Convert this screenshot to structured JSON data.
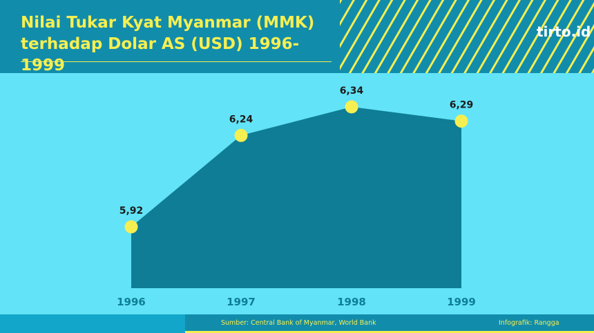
{
  "header": {
    "title_line1": "Nilai Tukar Kyat Myanmar (MMK)",
    "title_line2": "terhadap Dolar AS (USD) 1996-1999",
    "logo_text": "tirto.id"
  },
  "footer": {
    "source": "Sumber: Central Bank of Myanmar, World Bank",
    "credit": "Infografik: Rangga"
  },
  "colors": {
    "background": "#62e3f7",
    "header": "#128cab",
    "area_fill": "#0f7d96",
    "marker": "#f6ef51",
    "year_label": "#0f7d96",
    "value_label": "#1b1b1b"
  },
  "chart_data": {
    "type": "area",
    "title": "Nilai Tukar Kyat Myanmar (MMK) terhadap Dolar AS (USD) 1996-1999",
    "categories": [
      "1996",
      "1997",
      "1998",
      "1999"
    ],
    "values": [
      5.92,
      6.24,
      6.34,
      6.29
    ],
    "data_labels": [
      "5,92",
      "6,24",
      "6,34",
      "6,29"
    ],
    "grid": false,
    "legend": "none"
  }
}
